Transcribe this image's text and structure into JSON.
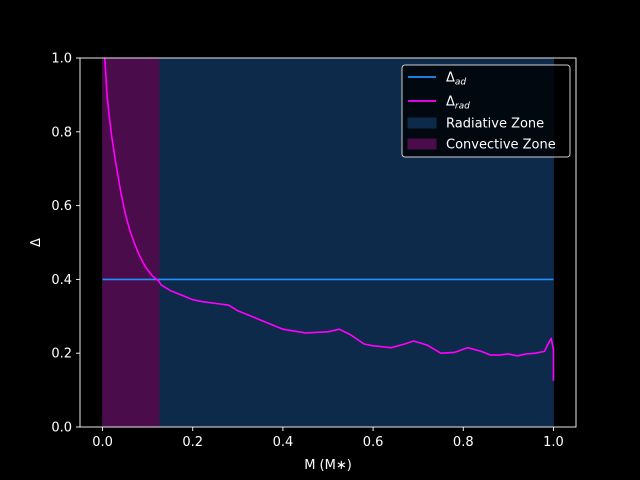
{
  "chart_data": {
    "type": "line",
    "title": "",
    "xlabel": "M (M∗)",
    "ylabel": "Δ",
    "xlim": [
      -0.05,
      1.05
    ],
    "ylim": [
      0.0,
      1.0
    ],
    "xticks": [
      0.0,
      0.2,
      0.4,
      0.6,
      0.8,
      1.0
    ],
    "xtick_labels": [
      "0.0",
      "0.2",
      "0.4",
      "0.6",
      "0.8",
      "1.0"
    ],
    "yticks": [
      0.0,
      0.2,
      0.4,
      0.6,
      0.8,
      1.0
    ],
    "ytick_labels": [
      "0.0",
      "0.2",
      "0.4",
      "0.6",
      "0.8",
      "1.0"
    ],
    "grid": false,
    "legend_placement": "top-right",
    "background_color": "#000000",
    "series": [
      {
        "name": "Δad",
        "legend_base": "Δ",
        "legend_sub": "ad",
        "color": "#1e90ff",
        "x": [
          0.0,
          1.0
        ],
        "y": [
          0.4,
          0.4
        ]
      },
      {
        "name": "Δrad",
        "legend_base": "Δ",
        "legend_sub": "rad",
        "color": "#ff00ff",
        "x": [
          0.005,
          0.01,
          0.015,
          0.02,
          0.03,
          0.04,
          0.05,
          0.06,
          0.07,
          0.08,
          0.09,
          0.1,
          0.11,
          0.12,
          0.125,
          0.13,
          0.15,
          0.18,
          0.2,
          0.22,
          0.25,
          0.28,
          0.3,
          0.35,
          0.4,
          0.45,
          0.5,
          0.525,
          0.55,
          0.58,
          0.6,
          0.64,
          0.67,
          0.69,
          0.72,
          0.75,
          0.78,
          0.81,
          0.84,
          0.86,
          0.88,
          0.9,
          0.91,
          0.92,
          0.94,
          0.96,
          0.98,
          0.99,
          0.995,
          1.0,
          1.0
        ],
        "y": [
          1.0,
          0.9,
          0.84,
          0.79,
          0.71,
          0.64,
          0.58,
          0.535,
          0.5,
          0.47,
          0.445,
          0.425,
          0.41,
          0.4,
          0.395,
          0.385,
          0.37,
          0.355,
          0.345,
          0.34,
          0.335,
          0.33,
          0.315,
          0.29,
          0.265,
          0.255,
          0.258,
          0.265,
          0.25,
          0.225,
          0.22,
          0.215,
          0.225,
          0.233,
          0.222,
          0.2,
          0.202,
          0.215,
          0.205,
          0.195,
          0.195,
          0.198,
          0.195,
          0.193,
          0.198,
          0.2,
          0.205,
          0.23,
          0.24,
          0.21,
          0.125
        ]
      }
    ],
    "regions": [
      {
        "name": "Radiative Zone",
        "x_start": 0.125,
        "x_end": 1.0,
        "color": "#0e2a4a"
      },
      {
        "name": "Convective Zone",
        "x_start": 0.0,
        "x_end": 0.125,
        "color": "#4a0c4a"
      }
    ]
  }
}
